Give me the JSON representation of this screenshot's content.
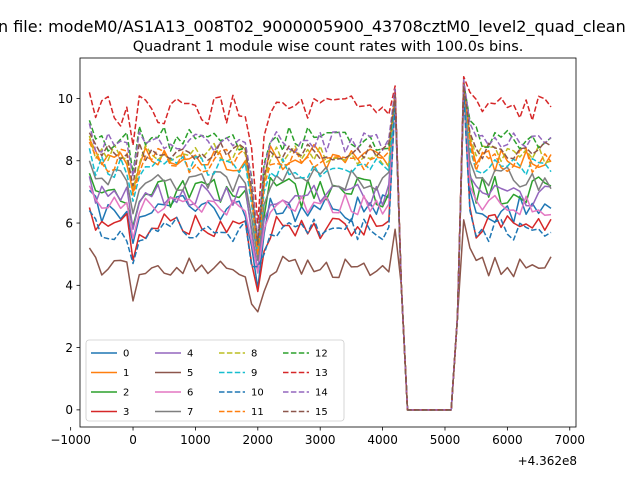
{
  "figure": {
    "suptitle": "n file: modeM0/AS1A13_008T02_9000005900_43708cztM0_level2_quad_clean"
  },
  "chart_data": {
    "type": "line",
    "title": "Quadrant 1 module wise count rates with 100.0s bins.",
    "xlabel": "",
    "ylabel": "",
    "x_offset_label": "+4.362e8",
    "xlim": [
      -850,
      7100
    ],
    "ylim": [
      -0.55,
      11.3
    ],
    "xticks": [
      -1000,
      0,
      1000,
      2000,
      3000,
      4000,
      5000,
      6000,
      7000
    ],
    "xtick_labels": [
      "−1000",
      "0",
      "1000",
      "2000",
      "3000",
      "4000",
      "5000",
      "6000",
      "7000"
    ],
    "yticks": [
      0,
      2,
      4,
      6,
      8,
      10
    ],
    "ytick_labels": [
      "0",
      "2",
      "4",
      "6",
      "8",
      "10"
    ],
    "grid": false,
    "legend": {
      "placement": "lower-left",
      "columns": 4
    },
    "x": [
      -700,
      -600,
      -500,
      -400,
      -300,
      -200,
      -100,
      0,
      100,
      200,
      300,
      400,
      500,
      600,
      700,
      800,
      900,
      1000,
      1100,
      1200,
      1300,
      1400,
      1500,
      1600,
      1700,
      1800,
      1900,
      2000,
      2100,
      2200,
      2300,
      2400,
      2500,
      2600,
      2700,
      2800,
      2900,
      3000,
      3100,
      3200,
      3300,
      3400,
      3500,
      3600,
      3700,
      3800,
      3900,
      4000,
      4100,
      4200,
      4300,
      4400,
      4500,
      4600,
      4700,
      4800,
      4900,
      5000,
      5100,
      5200,
      5300,
      5400,
      5500,
      5600,
      5700,
      5800,
      5900,
      6000,
      6100,
      6200,
      6300,
      6400,
      6500,
      6600,
      6700
    ],
    "series": [
      {
        "name": "0",
        "color": "#1f77b4",
        "dash": "solid",
        "base": 6.45,
        "dip": 3.9,
        "pk": 10.3,
        "amp": 0.45,
        "seed": 0
      },
      {
        "name": "1",
        "color": "#ff7f0e",
        "dash": "solid",
        "base": 8.1,
        "dip": 4.9,
        "pk": 10.6,
        "amp": 0.45,
        "seed": 1
      },
      {
        "name": "2",
        "color": "#2ca02c",
        "dash": "solid",
        "base": 7.0,
        "dip": 4.4,
        "pk": 10.5,
        "amp": 0.5,
        "seed": 2
      },
      {
        "name": "3",
        "color": "#d62728",
        "dash": "solid",
        "base": 5.9,
        "dip": 3.8,
        "pk": 10.4,
        "amp": 0.4,
        "seed": 3
      },
      {
        "name": "4",
        "color": "#9467bd",
        "dash": "solid",
        "base": 6.9,
        "dip": 4.5,
        "pk": 10.5,
        "amp": 0.35,
        "seed": 4
      },
      {
        "name": "5",
        "color": "#8c564b",
        "dash": "solid",
        "base": 4.6,
        "dip": 3.15,
        "pk": 6.1,
        "amp": 0.35,
        "seed": 5
      },
      {
        "name": "6",
        "color": "#e377c2",
        "dash": "solid",
        "base": 6.6,
        "dip": 4.4,
        "pk": 10.2,
        "amp": 0.35,
        "seed": 6
      },
      {
        "name": "7",
        "color": "#7f7f7f",
        "dash": "solid",
        "base": 7.4,
        "dip": 4.8,
        "pk": 10.3,
        "amp": 0.4,
        "seed": 7
      },
      {
        "name": "8",
        "color": "#bcbd22",
        "dash": "dashed",
        "base": 8.2,
        "dip": 5.2,
        "pk": 10.4,
        "amp": 0.35,
        "seed": 8
      },
      {
        "name": "9",
        "color": "#17becf",
        "dash": "dashed",
        "base": 7.8,
        "dip": 5.0,
        "pk": 10.3,
        "amp": 0.35,
        "seed": 9
      },
      {
        "name": "10",
        "color": "#1f77b4",
        "dash": "dashed",
        "base": 5.8,
        "dip": 4.6,
        "pk": 10.2,
        "amp": 0.4,
        "seed": 10
      },
      {
        "name": "11",
        "color": "#ff7f0e",
        "dash": "dashed",
        "base": 8.0,
        "dip": 5.0,
        "pk": 10.5,
        "amp": 0.4,
        "seed": 11
      },
      {
        "name": "12",
        "color": "#2ca02c",
        "dash": "dashed",
        "base": 8.7,
        "dip": 5.4,
        "pk": 10.5,
        "amp": 0.4,
        "seed": 12
      },
      {
        "name": "13",
        "color": "#d62728",
        "dash": "dashed",
        "base": 9.6,
        "dip": 6.0,
        "pk": 10.7,
        "amp": 0.5,
        "seed": 13
      },
      {
        "name": "14",
        "color": "#9467bd",
        "dash": "dashed",
        "base": 8.6,
        "dip": 5.5,
        "pk": 10.6,
        "amp": 0.35,
        "seed": 14
      },
      {
        "name": "15",
        "color": "#8c564b",
        "dash": "dashed",
        "base": 8.3,
        "dip": 5.3,
        "pk": 10.4,
        "amp": 0.3,
        "seed": 15
      }
    ]
  }
}
